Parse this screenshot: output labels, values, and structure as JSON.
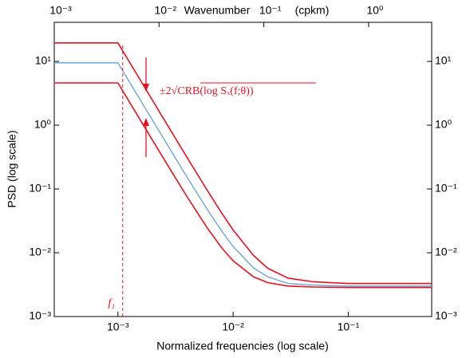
{
  "chart_data": {
    "type": "line",
    "xlabel": "Normalized frequencies (log scale)",
    "ylabel": "PSD (log scale)",
    "x2label": "Wavenumber",
    "x2unit": "(cpkm)",
    "annotation": "±2√CRB(log Sₓ(f;θ))",
    "marker_label": "f₁",
    "marker_x": 0.0011,
    "x": [
      0.00028,
      0.0005,
      0.001,
      0.0012,
      0.0015,
      0.002,
      0.003,
      0.004,
      0.006,
      0.008,
      0.01,
      0.015,
      0.02,
      0.03,
      0.05,
      0.1,
      0.2,
      0.53
    ],
    "series": [
      {
        "color": "#e8121f",
        "values": [
          19.5,
          19.5,
          19.5,
          11.29,
          5.78,
          2.441,
          0.725,
          0.308,
          0.0936,
          0.0414,
          0.0228,
          0.0091,
          0.0057,
          0.004,
          0.0035,
          0.0033,
          0.0033,
          0.0033
        ]
      },
      {
        "color": "#5fa1d6",
        "values": [
          9.5,
          9.5,
          9.5,
          5.5,
          2.815,
          1.19,
          0.355,
          0.151,
          0.047,
          0.0216,
          0.0125,
          0.0058,
          0.0042,
          0.0033,
          0.0031,
          0.003,
          0.003,
          0.003
        ]
      },
      {
        "color": "#e8121f",
        "values": [
          4.6,
          4.6,
          4.6,
          2.665,
          1.366,
          0.578,
          0.173,
          0.0747,
          0.0241,
          0.0118,
          0.0075,
          0.0042,
          0.0034,
          0.003,
          0.0029,
          0.00285,
          0.00285,
          0.00285
        ]
      }
    ],
    "xscale": "log",
    "yscale": "log",
    "xlim": [
      0.00028,
      0.53
    ],
    "xticks": [
      {
        "value": 0.001,
        "label": "10⁻³"
      },
      {
        "value": 0.01,
        "label": "10⁻²"
      },
      {
        "value": 0.1,
        "label": "10⁻¹"
      }
    ],
    "x2lim": [
      0.001,
      4
    ],
    "x2ticks": [
      {
        "value": 0.001,
        "label": "10⁻³"
      },
      {
        "value": 0.01,
        "label": "10⁻²"
      },
      {
        "value": 0.1,
        "label": "10⁻¹"
      },
      {
        "value": 1,
        "label": "10⁰"
      }
    ],
    "ylim": [
      0.001,
      41
    ],
    "yticks": [
      {
        "value": 0.001,
        "label": "10⁻³"
      },
      {
        "value": 0.01,
        "label": "10⁻²"
      },
      {
        "value": 0.1,
        "label": "10⁻¹"
      },
      {
        "value": 1,
        "label": "10⁰"
      },
      {
        "value": 10,
        "label": "10¹"
      }
    ]
  }
}
